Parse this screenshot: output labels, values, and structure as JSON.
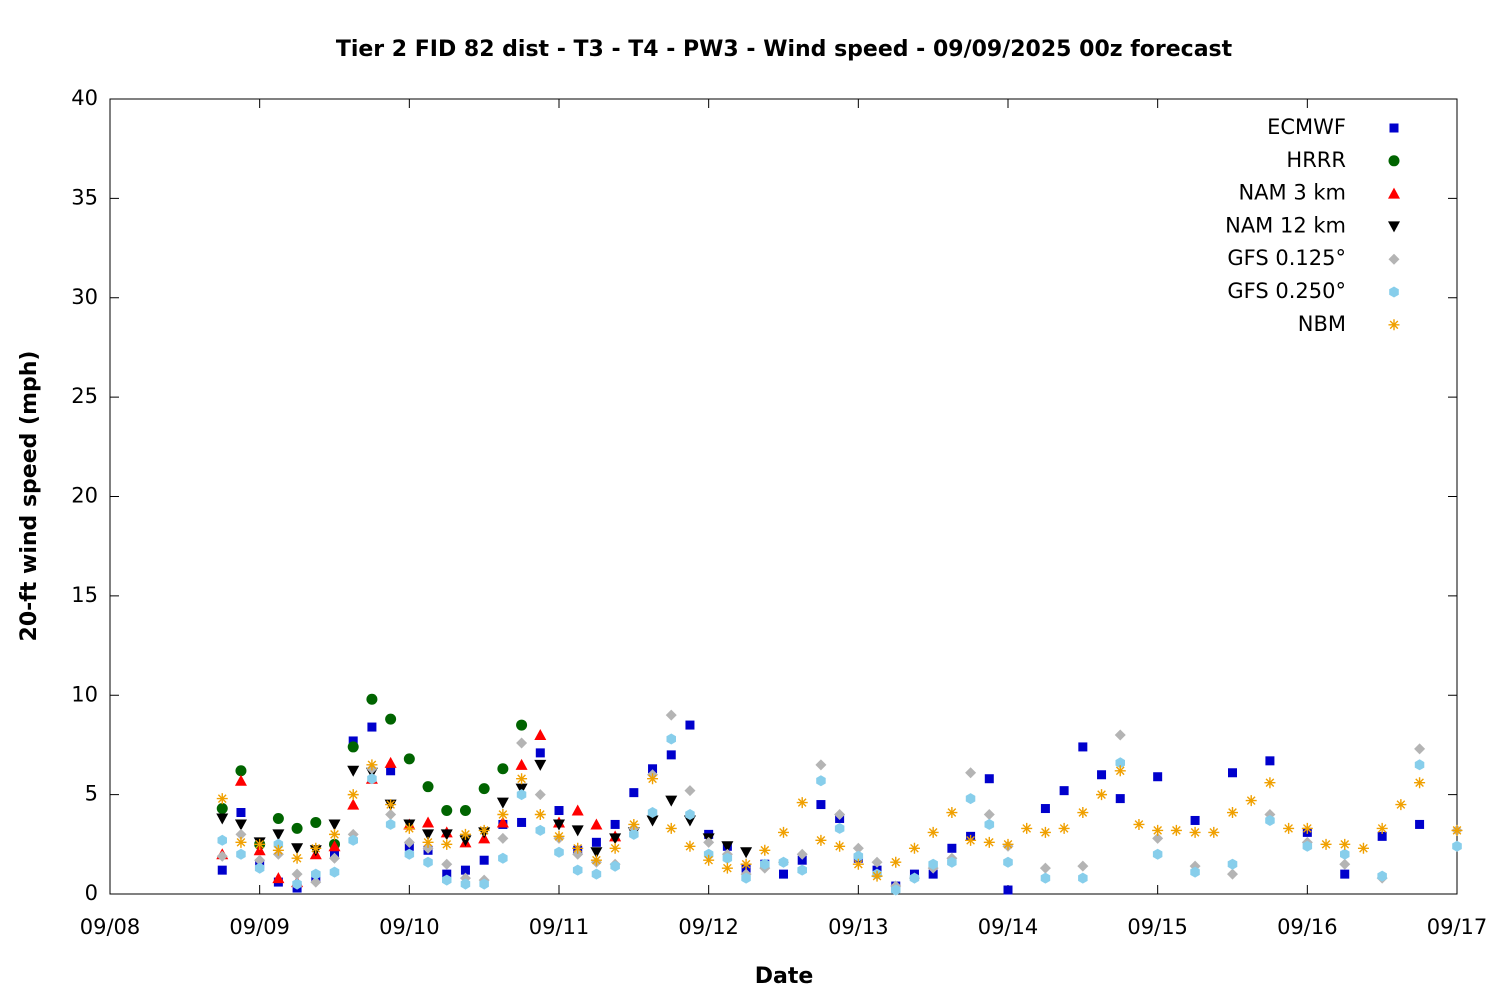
{
  "chart_data": {
    "type": "scatter",
    "title": "Tier 2 FID 82 dist - T3 - T4 - PW3 - Wind speed - 09/09/2025 00z forecast",
    "x_label": "Date",
    "y_label": "20-ft wind speed (mph)",
    "xlim": [
      "09/08",
      "09/17"
    ],
    "xticks": [
      "09/08",
      "09/09",
      "09/10",
      "09/11",
      "09/12",
      "09/13",
      "09/14",
      "09/15",
      "09/16",
      "09/17"
    ],
    "ylim": [
      0,
      40
    ],
    "yticks": [
      0,
      5,
      10,
      15,
      20,
      25,
      30,
      35,
      40
    ],
    "grid": false,
    "legend": "upper right",
    "series": [
      {
        "name": "ECMWF",
        "color": "#0000cc",
        "marker": "square",
        "x": [
          "09/08 18:00",
          "09/08 21:00",
          "09/09 00:00",
          "09/09 03:00",
          "09/09 06:00",
          "09/09 09:00",
          "09/09 12:00",
          "09/09 15:00",
          "09/09 18:00",
          "09/09 21:00",
          "09/10 00:00",
          "09/10 03:00",
          "09/10 06:00",
          "09/10 09:00",
          "09/10 12:00",
          "09/10 15:00",
          "09/10 18:00",
          "09/10 21:00",
          "09/11 00:00",
          "09/11 03:00",
          "09/11 06:00",
          "09/11 09:00",
          "09/11 12:00",
          "09/11 15:00",
          "09/11 18:00",
          "09/11 21:00",
          "09/12 00:00",
          "09/12 03:00",
          "09/12 06:00",
          "09/12 09:00",
          "09/12 12:00",
          "09/12 15:00",
          "09/12 18:00",
          "09/12 21:00",
          "09/13 00:00",
          "09/13 03:00",
          "09/13 06:00",
          "09/13 09:00",
          "09/13 12:00",
          "09/13 15:00",
          "09/13 18:00",
          "09/13 21:00",
          "09/14 00:00",
          "09/14 06:00",
          "09/14 09:00",
          "09/14 12:00",
          "09/14 15:00",
          "09/14 18:00",
          "09/15 00:00",
          "09/15 06:00",
          "09/15 12:00",
          "09/15 18:00",
          "09/16 00:00",
          "09/16 06:00",
          "09/16 12:00",
          "09/16 18:00"
        ],
        "values": [
          1.2,
          4.1,
          1.5,
          0.6,
          0.3,
          0.8,
          2.0,
          7.7,
          8.4,
          6.2,
          2.4,
          2.2,
          1.0,
          1.2,
          1.7,
          3.5,
          3.6,
          7.1,
          4.2,
          2.2,
          2.6,
          3.5,
          5.1,
          6.3,
          7.0,
          8.5,
          3.0,
          2.4,
          1.3,
          1.5,
          1.0,
          1.7,
          4.5,
          3.8,
          1.8,
          1.2,
          0.4,
          1.0,
          1.0,
          2.3,
          2.9,
          5.8,
          0.2,
          4.3,
          5.2,
          7.4,
          6.0,
          4.8,
          5.9,
          3.7,
          6.1,
          6.7,
          3.1,
          1.0,
          2.9,
          3.5
        ]
      },
      {
        "name": "HRRR",
        "color": "#006400",
        "marker": "circle",
        "x": [
          "09/08 18:00",
          "09/08 21:00",
          "09/09 00:00",
          "09/09 03:00",
          "09/09 06:00",
          "09/09 09:00",
          "09/09 12:00",
          "09/09 15:00",
          "09/09 18:00",
          "09/09 21:00",
          "09/10 00:00",
          "09/10 03:00",
          "09/10 06:00",
          "09/10 09:00",
          "09/10 12:00",
          "09/10 15:00",
          "09/10 18:00"
        ],
        "values": [
          4.3,
          6.2,
          2.5,
          3.8,
          3.3,
          3.6,
          2.5,
          7.4,
          9.8,
          8.8,
          6.8,
          5.4,
          4.2,
          4.2,
          5.3,
          6.3,
          8.5
        ]
      },
      {
        "name": "NAM 3 km",
        "color": "#ff0000",
        "marker": "triangle",
        "x": [
          "09/08 18:00",
          "09/08 21:00",
          "09/09 00:00",
          "09/09 03:00",
          "09/09 06:00",
          "09/09 09:00",
          "09/09 12:00",
          "09/09 15:00",
          "09/09 18:00",
          "09/09 21:00",
          "09/10 00:00",
          "09/10 03:00",
          "09/10 06:00",
          "09/10 09:00",
          "09/10 12:00",
          "09/10 15:00",
          "09/10 18:00",
          "09/10 21:00",
          "09/11 00:00",
          "09/11 03:00",
          "09/11 06:00",
          "09/11 09:00"
        ],
        "values": [
          2.0,
          5.7,
          2.2,
          0.8,
          0.6,
          2.0,
          2.4,
          4.5,
          5.8,
          6.6,
          3.5,
          3.6,
          3.1,
          2.6,
          2.8,
          3.6,
          6.5,
          8.0,
          3.6,
          4.2,
          3.5,
          2.9
        ]
      },
      {
        "name": "NAM 12 km",
        "color": "#000000",
        "marker": "triangle-down",
        "x": [
          "09/08 18:00",
          "09/08 21:00",
          "09/09 00:00",
          "09/09 03:00",
          "09/09 06:00",
          "09/09 09:00",
          "09/09 12:00",
          "09/09 15:00",
          "09/09 18:00",
          "09/09 21:00",
          "09/10 00:00",
          "09/10 03:00",
          "09/10 06:00",
          "09/10 09:00",
          "09/10 12:00",
          "09/10 15:00",
          "09/10 18:00",
          "09/10 21:00",
          "09/11 00:00",
          "09/11 03:00",
          "09/11 06:00",
          "09/11 09:00",
          "09/11 12:00",
          "09/11 15:00",
          "09/11 18:00",
          "09/11 21:00",
          "09/12 00:00",
          "09/12 03:00",
          "09/12 06:00"
        ],
        "values": [
          3.8,
          3.5,
          2.6,
          3.0,
          2.3,
          2.2,
          3.5,
          6.2,
          6.1,
          4.5,
          3.5,
          3.0,
          3.0,
          2.7,
          3.1,
          4.6,
          5.3,
          6.5,
          3.5,
          3.2,
          2.1,
          2.8,
          3.1,
          3.7,
          4.7,
          3.7,
          2.8,
          2.4,
          2.1
        ]
      },
      {
        "name": "GFS 0.125°",
        "color": "#b4b4b4",
        "marker": "diamond",
        "x": [
          "09/08 18:00",
          "09/08 21:00",
          "09/09 00:00",
          "09/09 03:00",
          "09/09 06:00",
          "09/09 09:00",
          "09/09 12:00",
          "09/09 15:00",
          "09/09 18:00",
          "09/09 21:00",
          "09/10 00:00",
          "09/10 03:00",
          "09/10 06:00",
          "09/10 09:00",
          "09/10 12:00",
          "09/10 15:00",
          "09/10 18:00",
          "09/10 21:00",
          "09/11 00:00",
          "09/11 03:00",
          "09/11 06:00",
          "09/11 09:00",
          "09/11 12:00",
          "09/11 15:00",
          "09/11 18:00",
          "09/11 21:00",
          "09/12 00:00",
          "09/12 03:00",
          "09/12 06:00",
          "09/12 09:00",
          "09/12 12:00",
          "09/12 15:00",
          "09/12 18:00",
          "09/12 21:00",
          "09/13 00:00",
          "09/13 03:00",
          "09/13 06:00",
          "09/13 09:00",
          "09/13 12:00",
          "09/13 15:00",
          "09/13 18:00",
          "09/13 21:00",
          "09/14 00:00",
          "09/14 06:00",
          "09/14 12:00",
          "09/14 18:00",
          "09/15 00:00",
          "09/15 06:00",
          "09/15 12:00",
          "09/15 18:00",
          "09/16 00:00",
          "09/16 06:00",
          "09/16 12:00",
          "09/16 18:00",
          "09/17 00:00"
        ],
        "values": [
          1.9,
          3.0,
          1.7,
          2.0,
          1.0,
          0.6,
          1.8,
          3.0,
          6.3,
          4.0,
          2.6,
          2.3,
          1.5,
          0.8,
          0.7,
          2.8,
          7.6,
          5.0,
          2.8,
          2.0,
          1.6,
          1.5,
          3.3,
          6.0,
          9.0,
          5.2,
          2.6,
          2.0,
          1.0,
          1.3,
          1.6,
          2.0,
          6.5,
          4.0,
          2.3,
          1.6,
          0.4,
          0.8,
          1.3,
          1.8,
          6.1,
          4.0,
          2.4,
          1.3,
          1.4,
          8.0,
          2.8,
          1.4,
          1.0,
          4.0,
          2.6,
          1.5,
          0.8,
          7.3,
          3.2
        ]
      },
      {
        "name": "GFS 0.250°",
        "color": "#87ceeb",
        "marker": "hexagon",
        "x": [
          "09/08 18:00",
          "09/08 21:00",
          "09/09 00:00",
          "09/09 03:00",
          "09/09 06:00",
          "09/09 09:00",
          "09/09 12:00",
          "09/09 15:00",
          "09/09 18:00",
          "09/09 21:00",
          "09/10 00:00",
          "09/10 03:00",
          "09/10 06:00",
          "09/10 09:00",
          "09/10 12:00",
          "09/10 15:00",
          "09/10 18:00",
          "09/10 21:00",
          "09/11 00:00",
          "09/11 03:00",
          "09/11 06:00",
          "09/11 09:00",
          "09/11 12:00",
          "09/11 15:00",
          "09/11 18:00",
          "09/11 21:00",
          "09/12 00:00",
          "09/12 03:00",
          "09/12 06:00",
          "09/12 09:00",
          "09/12 12:00",
          "09/12 15:00",
          "09/12 18:00",
          "09/12 21:00",
          "09/13 00:00",
          "09/13 03:00",
          "09/13 06:00",
          "09/13 09:00",
          "09/13 12:00",
          "09/13 15:00",
          "09/13 18:00",
          "09/13 21:00",
          "09/14 00:00",
          "09/14 06:00",
          "09/14 12:00",
          "09/14 18:00",
          "09/15 00:00",
          "09/15 06:00",
          "09/15 12:00",
          "09/15 18:00",
          "09/16 00:00",
          "09/16 06:00",
          "09/16 12:00",
          "09/16 18:00",
          "09/17 00:00"
        ],
        "values": [
          2.7,
          2.0,
          1.3,
          2.5,
          0.5,
          1.0,
          1.1,
          2.7,
          5.8,
          3.5,
          2.0,
          1.6,
          0.7,
          0.5,
          0.5,
          1.8,
          5.0,
          3.2,
          2.1,
          1.2,
          1.0,
          1.4,
          3.0,
          4.1,
          7.8,
          4.0,
          2.0,
          1.8,
          0.8,
          1.5,
          1.6,
          1.2,
          5.7,
          3.3,
          1.9,
          1.0,
          0.2,
          0.8,
          1.5,
          1.6,
          4.8,
          3.5,
          1.6,
          0.8,
          0.8,
          6.6,
          2.0,
          1.1,
          1.5,
          3.7,
          2.4,
          2.0,
          0.9,
          6.5,
          2.4
        ]
      },
      {
        "name": "NBM",
        "color": "#f0a000",
        "marker": "asterisk",
        "x": [
          "09/08 18:00",
          "09/08 21:00",
          "09/09 00:00",
          "09/09 03:00",
          "09/09 06:00",
          "09/09 09:00",
          "09/09 12:00",
          "09/09 15:00",
          "09/09 18:00",
          "09/09 21:00",
          "09/10 00:00",
          "09/10 03:00",
          "09/10 06:00",
          "09/10 09:00",
          "09/10 12:00",
          "09/10 15:00",
          "09/10 18:00",
          "09/10 21:00",
          "09/11 00:00",
          "09/11 03:00",
          "09/11 06:00",
          "09/11 09:00",
          "09/11 12:00",
          "09/11 15:00",
          "09/11 18:00",
          "09/11 21:00",
          "09/12 00:00",
          "09/12 03:00",
          "09/12 06:00",
          "09/12 09:00",
          "09/12 12:00",
          "09/12 15:00",
          "09/12 18:00",
          "09/12 21:00",
          "09/13 00:00",
          "09/13 03:00",
          "09/13 06:00",
          "09/13 09:00",
          "09/13 12:00",
          "09/13 15:00",
          "09/13 18:00",
          "09/13 21:00",
          "09/14 00:00",
          "09/14 03:00",
          "09/14 06:00",
          "09/14 09:00",
          "09/14 12:00",
          "09/14 15:00",
          "09/14 18:00",
          "09/14 21:00",
          "09/15 00:00",
          "09/15 03:00",
          "09/15 06:00",
          "09/15 09:00",
          "09/15 12:00",
          "09/15 15:00",
          "09/15 18:00",
          "09/15 21:00",
          "09/16 00:00",
          "09/16 03:00",
          "09/16 06:00",
          "09/16 09:00",
          "09/16 12:00",
          "09/16 15:00",
          "09/16 18:00",
          "09/17 00:00"
        ],
        "values": [
          4.8,
          2.6,
          2.5,
          2.2,
          1.8,
          2.3,
          3.0,
          5.0,
          6.5,
          4.5,
          3.3,
          2.6,
          2.5,
          3.0,
          3.2,
          4.0,
          5.8,
          4.0,
          2.9,
          2.3,
          1.7,
          2.3,
          3.5,
          5.8,
          3.3,
          2.4,
          1.7,
          1.3,
          1.5,
          2.2,
          3.1,
          4.6,
          2.7,
          2.4,
          1.5,
          0.9,
          1.6,
          2.3,
          3.1,
          4.1,
          2.7,
          2.6,
          2.5,
          3.3,
          3.1,
          3.3,
          4.1,
          5.0,
          6.2,
          3.5,
          3.2,
          3.2,
          3.1,
          3.1,
          4.1,
          4.7,
          5.6,
          3.3,
          3.3,
          2.5,
          2.5,
          2.3,
          3.3,
          4.5,
          5.6,
          3.2
        ]
      }
    ]
  }
}
